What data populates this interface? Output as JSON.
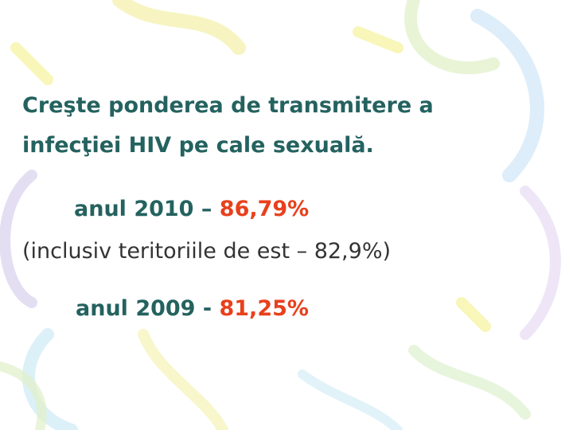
{
  "heading": [
    "Creşte ponderea de transmitere a",
    "infecţiei HIV pe cale sexuală."
  ],
  "items": [
    {
      "label": "anul 2010 –",
      "value": "86,79%",
      "note": "(inclusiv teritoriile de est – 82,9%)"
    },
    {
      "label": "anul 2009 -",
      "value": "81,25%"
    }
  ]
}
